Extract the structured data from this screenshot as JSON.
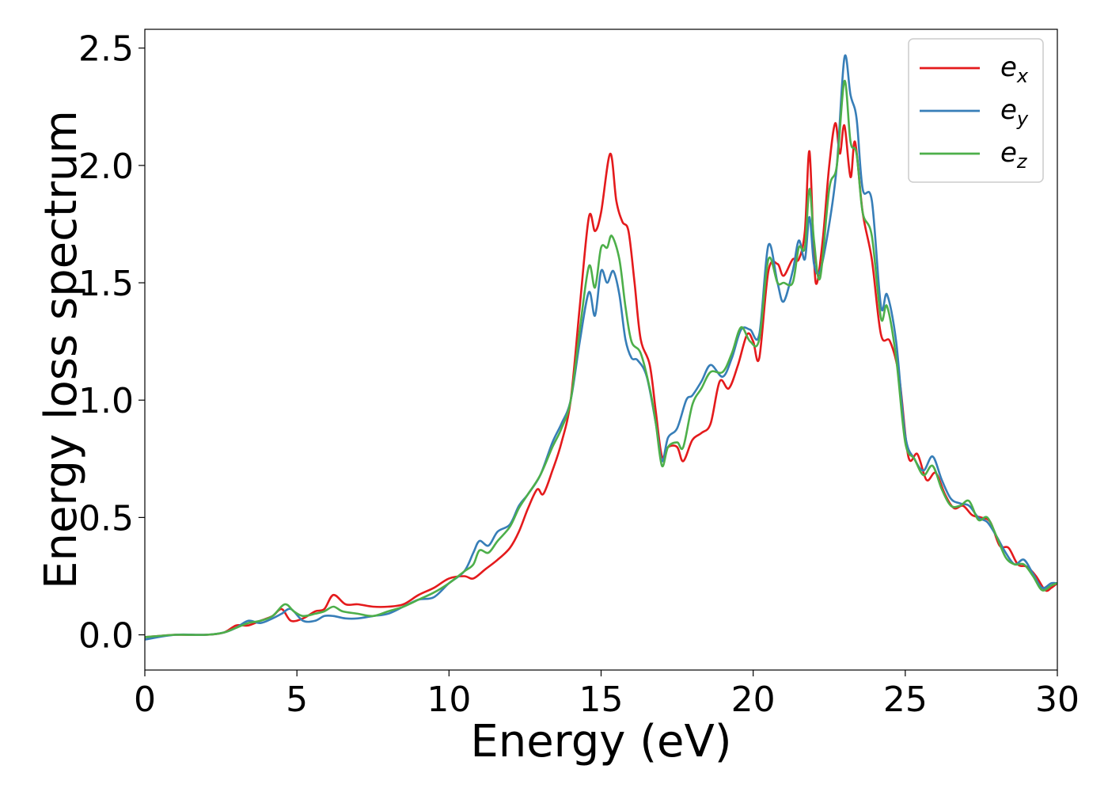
{
  "chart_data": {
    "type": "line",
    "title": "",
    "xlabel": "Energy (eV)",
    "ylabel": "Energy loss spectrum",
    "xlim": [
      0,
      30
    ],
    "ylim": [
      -0.15,
      2.58
    ],
    "xticks": [
      0,
      5,
      10,
      15,
      20,
      25,
      30
    ],
    "xtick_labels": [
      "0",
      "5",
      "10",
      "15",
      "20",
      "25",
      "30"
    ],
    "yticks": [
      0.0,
      0.5,
      1.0,
      1.5,
      2.0,
      2.5
    ],
    "ytick_labels": [
      "0.0",
      "0.5",
      "1.0",
      "1.5",
      "2.0",
      "2.5"
    ],
    "grid": false,
    "legend_position": "top-right",
    "series": [
      {
        "name": "e",
        "name_sub": "x",
        "color": "#e41a1c",
        "points": [
          [
            0,
            -0.01
          ],
          [
            1,
            0.0
          ],
          [
            2,
            0.0
          ],
          [
            2.6,
            0.01
          ],
          [
            3,
            0.04
          ],
          [
            3.4,
            0.04
          ],
          [
            3.8,
            0.06
          ],
          [
            4.2,
            0.08
          ],
          [
            4.5,
            0.11
          ],
          [
            4.8,
            0.06
          ],
          [
            5.2,
            0.07
          ],
          [
            5.6,
            0.1
          ],
          [
            5.9,
            0.11
          ],
          [
            6.2,
            0.17
          ],
          [
            6.6,
            0.13
          ],
          [
            7.0,
            0.13
          ],
          [
            7.5,
            0.12
          ],
          [
            8.0,
            0.12
          ],
          [
            8.5,
            0.13
          ],
          [
            9.0,
            0.17
          ],
          [
            9.5,
            0.2
          ],
          [
            10.0,
            0.24
          ],
          [
            10.5,
            0.25
          ],
          [
            10.8,
            0.24
          ],
          [
            11.2,
            0.28
          ],
          [
            11.6,
            0.32
          ],
          [
            12.0,
            0.37
          ],
          [
            12.3,
            0.44
          ],
          [
            12.6,
            0.54
          ],
          [
            12.9,
            0.62
          ],
          [
            13.1,
            0.6
          ],
          [
            13.4,
            0.7
          ],
          [
            13.7,
            0.82
          ],
          [
            14.0,
            1.0
          ],
          [
            14.3,
            1.4
          ],
          [
            14.6,
            1.78
          ],
          [
            14.8,
            1.72
          ],
          [
            15.0,
            1.8
          ],
          [
            15.3,
            2.05
          ],
          [
            15.5,
            1.85
          ],
          [
            15.7,
            1.76
          ],
          [
            15.9,
            1.72
          ],
          [
            16.1,
            1.5
          ],
          [
            16.3,
            1.26
          ],
          [
            16.6,
            1.15
          ],
          [
            16.8,
            0.95
          ],
          [
            17.0,
            0.76
          ],
          [
            17.2,
            0.8
          ],
          [
            17.5,
            0.8
          ],
          [
            17.7,
            0.74
          ],
          [
            18.0,
            0.83
          ],
          [
            18.3,
            0.86
          ],
          [
            18.6,
            0.9
          ],
          [
            18.9,
            1.08
          ],
          [
            19.2,
            1.05
          ],
          [
            19.5,
            1.15
          ],
          [
            19.8,
            1.28
          ],
          [
            20.0,
            1.25
          ],
          [
            20.2,
            1.18
          ],
          [
            20.5,
            1.55
          ],
          [
            20.8,
            1.58
          ],
          [
            21.0,
            1.53
          ],
          [
            21.3,
            1.6
          ],
          [
            21.5,
            1.6
          ],
          [
            21.7,
            1.72
          ],
          [
            21.85,
            2.06
          ],
          [
            22.0,
            1.6
          ],
          [
            22.1,
            1.5
          ],
          [
            22.3,
            1.7
          ],
          [
            22.5,
            2.0
          ],
          [
            22.7,
            2.18
          ],
          [
            22.85,
            2.05
          ],
          [
            23.0,
            2.17
          ],
          [
            23.2,
            1.95
          ],
          [
            23.35,
            2.1
          ],
          [
            23.6,
            1.8
          ],
          [
            23.9,
            1.6
          ],
          [
            24.2,
            1.28
          ],
          [
            24.5,
            1.25
          ],
          [
            24.8,
            1.1
          ],
          [
            25.1,
            0.76
          ],
          [
            25.4,
            0.77
          ],
          [
            25.7,
            0.66
          ],
          [
            26.0,
            0.69
          ],
          [
            26.3,
            0.6
          ],
          [
            26.6,
            0.54
          ],
          [
            26.9,
            0.55
          ],
          [
            27.2,
            0.51
          ],
          [
            27.5,
            0.5
          ],
          [
            27.8,
            0.48
          ],
          [
            28.1,
            0.38
          ],
          [
            28.4,
            0.37
          ],
          [
            28.7,
            0.3
          ],
          [
            29.0,
            0.29
          ],
          [
            29.3,
            0.25
          ],
          [
            29.6,
            0.19
          ],
          [
            29.8,
            0.2
          ],
          [
            30,
            0.22
          ]
        ]
      },
      {
        "name": "e",
        "name_sub": "y",
        "color": "#377eb8",
        "points": [
          [
            0,
            -0.02
          ],
          [
            1,
            0.0
          ],
          [
            2,
            0.0
          ],
          [
            2.6,
            0.01
          ],
          [
            3,
            0.03
          ],
          [
            3.4,
            0.06
          ],
          [
            3.8,
            0.05
          ],
          [
            4.2,
            0.07
          ],
          [
            4.5,
            0.09
          ],
          [
            4.8,
            0.11
          ],
          [
            5.2,
            0.06
          ],
          [
            5.6,
            0.06
          ],
          [
            5.9,
            0.08
          ],
          [
            6.2,
            0.08
          ],
          [
            6.6,
            0.07
          ],
          [
            7.0,
            0.07
          ],
          [
            7.5,
            0.08
          ],
          [
            8.0,
            0.09
          ],
          [
            8.5,
            0.12
          ],
          [
            9.0,
            0.15
          ],
          [
            9.5,
            0.16
          ],
          [
            10.0,
            0.22
          ],
          [
            10.5,
            0.27
          ],
          [
            10.8,
            0.35
          ],
          [
            11.0,
            0.4
          ],
          [
            11.3,
            0.38
          ],
          [
            11.6,
            0.44
          ],
          [
            12.0,
            0.47
          ],
          [
            12.3,
            0.55
          ],
          [
            12.6,
            0.6
          ],
          [
            13.0,
            0.68
          ],
          [
            13.4,
            0.82
          ],
          [
            13.7,
            0.9
          ],
          [
            14.0,
            1.0
          ],
          [
            14.3,
            1.25
          ],
          [
            14.6,
            1.46
          ],
          [
            14.8,
            1.36
          ],
          [
            15.0,
            1.55
          ],
          [
            15.2,
            1.5
          ],
          [
            15.4,
            1.55
          ],
          [
            15.6,
            1.45
          ],
          [
            15.8,
            1.26
          ],
          [
            16.0,
            1.18
          ],
          [
            16.2,
            1.17
          ],
          [
            16.5,
            1.1
          ],
          [
            16.8,
            0.9
          ],
          [
            17.0,
            0.74
          ],
          [
            17.2,
            0.84
          ],
          [
            17.5,
            0.88
          ],
          [
            17.8,
            1.0
          ],
          [
            18.0,
            1.02
          ],
          [
            18.3,
            1.08
          ],
          [
            18.6,
            1.15
          ],
          [
            19.0,
            1.1
          ],
          [
            19.3,
            1.18
          ],
          [
            19.6,
            1.3
          ],
          [
            19.9,
            1.3
          ],
          [
            20.2,
            1.28
          ],
          [
            20.5,
            1.66
          ],
          [
            20.8,
            1.5
          ],
          [
            21.0,
            1.42
          ],
          [
            21.3,
            1.55
          ],
          [
            21.5,
            1.68
          ],
          [
            21.7,
            1.6
          ],
          [
            21.85,
            1.78
          ],
          [
            22.0,
            1.58
          ],
          [
            22.2,
            1.55
          ],
          [
            22.5,
            1.75
          ],
          [
            22.75,
            2.0
          ],
          [
            23.0,
            2.46
          ],
          [
            23.2,
            2.3
          ],
          [
            23.4,
            2.2
          ],
          [
            23.6,
            1.9
          ],
          [
            23.9,
            1.85
          ],
          [
            24.2,
            1.4
          ],
          [
            24.4,
            1.45
          ],
          [
            24.7,
            1.25
          ],
          [
            25.0,
            0.85
          ],
          [
            25.3,
            0.75
          ],
          [
            25.6,
            0.7
          ],
          [
            25.9,
            0.76
          ],
          [
            26.2,
            0.66
          ],
          [
            26.5,
            0.58
          ],
          [
            26.8,
            0.56
          ],
          [
            27.1,
            0.55
          ],
          [
            27.4,
            0.5
          ],
          [
            27.7,
            0.48
          ],
          [
            28.0,
            0.42
          ],
          [
            28.3,
            0.35
          ],
          [
            28.6,
            0.3
          ],
          [
            28.9,
            0.32
          ],
          [
            29.2,
            0.26
          ],
          [
            29.5,
            0.2
          ],
          [
            29.8,
            0.22
          ],
          [
            30,
            0.22
          ]
        ]
      },
      {
        "name": "e",
        "name_sub": "z",
        "color": "#4daf4a",
        "points": [
          [
            0,
            -0.01
          ],
          [
            1,
            0.0
          ],
          [
            2,
            0.0
          ],
          [
            2.6,
            0.01
          ],
          [
            3,
            0.03
          ],
          [
            3.4,
            0.05
          ],
          [
            3.8,
            0.06
          ],
          [
            4.2,
            0.08
          ],
          [
            4.6,
            0.13
          ],
          [
            4.9,
            0.1
          ],
          [
            5.2,
            0.08
          ],
          [
            5.6,
            0.09
          ],
          [
            5.9,
            0.1
          ],
          [
            6.2,
            0.12
          ],
          [
            6.5,
            0.1
          ],
          [
            7.0,
            0.09
          ],
          [
            7.5,
            0.08
          ],
          [
            8.0,
            0.1
          ],
          [
            8.5,
            0.12
          ],
          [
            9.0,
            0.15
          ],
          [
            9.5,
            0.18
          ],
          [
            10.0,
            0.22
          ],
          [
            10.5,
            0.27
          ],
          [
            10.8,
            0.3
          ],
          [
            11.0,
            0.36
          ],
          [
            11.3,
            0.35
          ],
          [
            11.6,
            0.4
          ],
          [
            12.0,
            0.46
          ],
          [
            12.3,
            0.54
          ],
          [
            12.6,
            0.6
          ],
          [
            13.0,
            0.68
          ],
          [
            13.4,
            0.8
          ],
          [
            13.7,
            0.88
          ],
          [
            14.0,
            1.0
          ],
          [
            14.3,
            1.3
          ],
          [
            14.6,
            1.57
          ],
          [
            14.8,
            1.48
          ],
          [
            15.0,
            1.65
          ],
          [
            15.2,
            1.65
          ],
          [
            15.35,
            1.7
          ],
          [
            15.6,
            1.6
          ],
          [
            15.8,
            1.4
          ],
          [
            16.0,
            1.25
          ],
          [
            16.3,
            1.2
          ],
          [
            16.6,
            1.05
          ],
          [
            16.8,
            0.9
          ],
          [
            17.0,
            0.72
          ],
          [
            17.2,
            0.8
          ],
          [
            17.5,
            0.82
          ],
          [
            17.7,
            0.8
          ],
          [
            18.0,
            0.98
          ],
          [
            18.3,
            1.05
          ],
          [
            18.6,
            1.12
          ],
          [
            19.0,
            1.12
          ],
          [
            19.3,
            1.2
          ],
          [
            19.6,
            1.31
          ],
          [
            19.9,
            1.25
          ],
          [
            20.2,
            1.26
          ],
          [
            20.5,
            1.6
          ],
          [
            20.8,
            1.5
          ],
          [
            21.0,
            1.5
          ],
          [
            21.3,
            1.5
          ],
          [
            21.5,
            1.65
          ],
          [
            21.7,
            1.65
          ],
          [
            21.85,
            1.9
          ],
          [
            22.0,
            1.68
          ],
          [
            22.2,
            1.52
          ],
          [
            22.5,
            1.9
          ],
          [
            22.75,
            2.0
          ],
          [
            23.0,
            2.36
          ],
          [
            23.2,
            2.1
          ],
          [
            23.4,
            2.05
          ],
          [
            23.6,
            1.8
          ],
          [
            23.9,
            1.7
          ],
          [
            24.2,
            1.35
          ],
          [
            24.4,
            1.4
          ],
          [
            24.7,
            1.18
          ],
          [
            25.0,
            0.82
          ],
          [
            25.3,
            0.75
          ],
          [
            25.6,
            0.68
          ],
          [
            25.9,
            0.72
          ],
          [
            26.2,
            0.62
          ],
          [
            26.5,
            0.55
          ],
          [
            26.8,
            0.55
          ],
          [
            27.1,
            0.57
          ],
          [
            27.4,
            0.49
          ],
          [
            27.7,
            0.5
          ],
          [
            28.0,
            0.42
          ],
          [
            28.3,
            0.33
          ],
          [
            28.6,
            0.3
          ],
          [
            28.9,
            0.3
          ],
          [
            29.2,
            0.25
          ],
          [
            29.5,
            0.19
          ],
          [
            29.8,
            0.21
          ],
          [
            30,
            0.22
          ]
        ]
      }
    ]
  }
}
